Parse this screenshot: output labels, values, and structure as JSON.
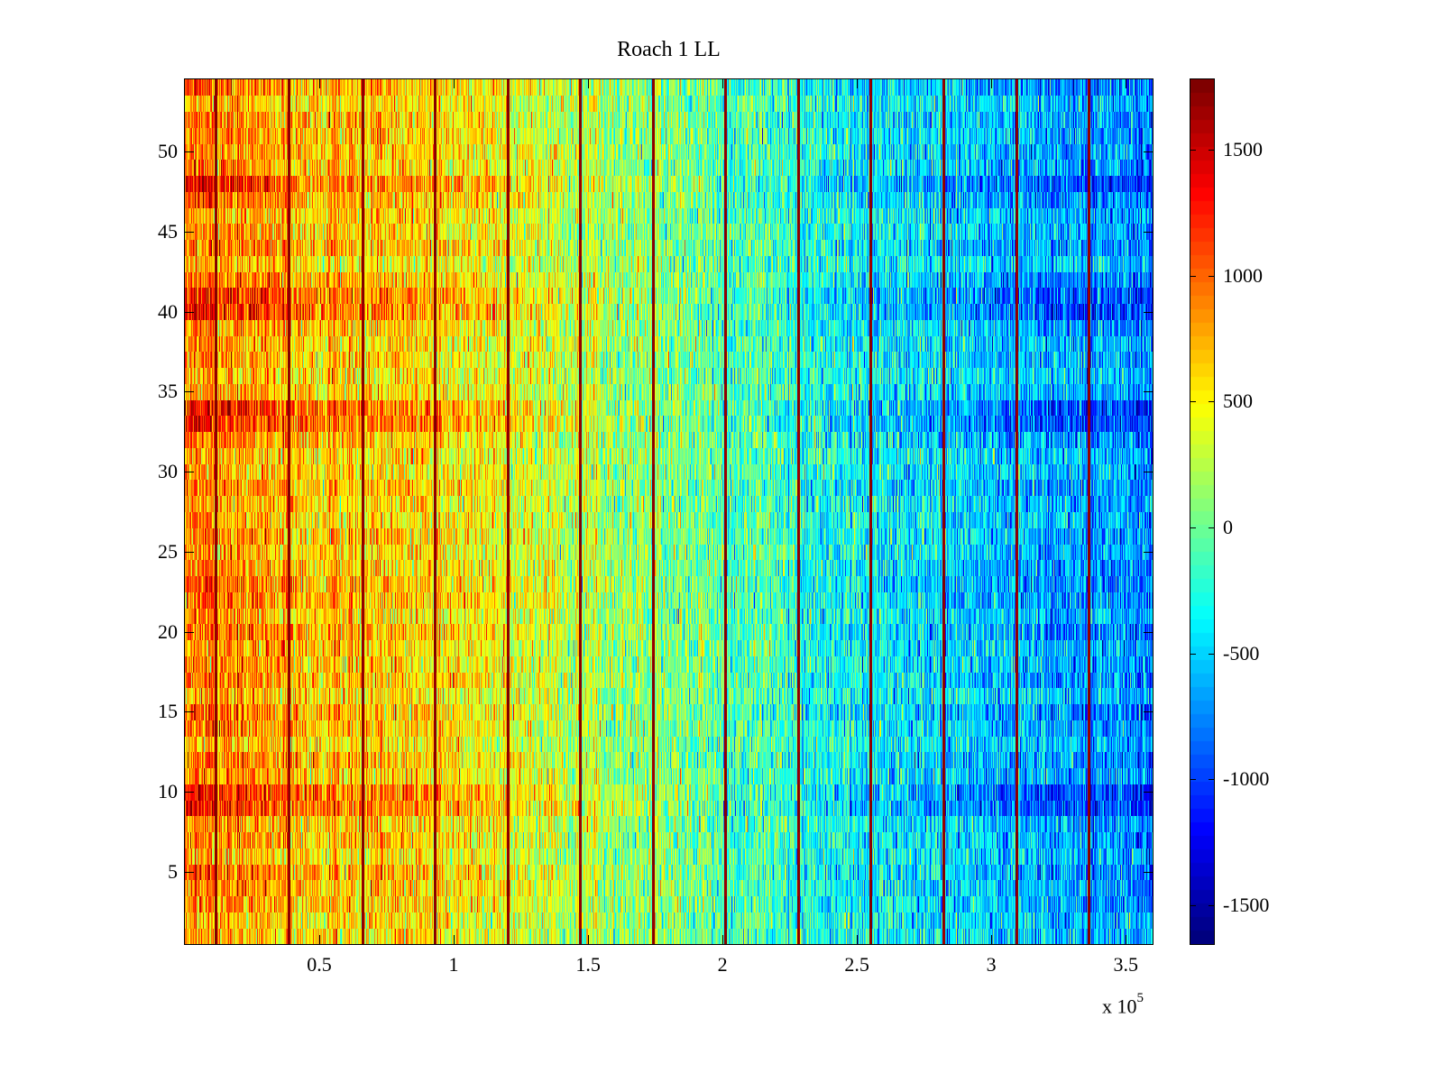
{
  "chart_data": {
    "type": "heatmap",
    "title": "Roach 1 LL",
    "xlabel": "",
    "ylabel": "",
    "x_multiplier_label": "x 10",
    "x_multiplier_exponent": "5",
    "xlim": [
      0,
      3.6
    ],
    "ylim": [
      0.5,
      54.5
    ],
    "rows": 54,
    "xticks": [
      0.5,
      1,
      1.5,
      2,
      2.5,
      3,
      3.5
    ],
    "xtick_labels": [
      "0.5",
      "1",
      "1.5",
      "2",
      "2.5",
      "3",
      "3.5"
    ],
    "yticks": [
      5,
      10,
      15,
      20,
      25,
      30,
      35,
      40,
      45,
      50
    ],
    "ytick_labels": [
      "5",
      "10",
      "15",
      "20",
      "25",
      "30",
      "35",
      "40",
      "45",
      "50"
    ],
    "colormap": "jet",
    "clim": [
      -1654,
      1779
    ],
    "colorbar_ticks": [
      1500,
      1000,
      500,
      0,
      -500,
      -1000,
      -1500
    ],
    "colorbar_tick_labels": [
      "1500",
      "1000",
      "500",
      "0",
      "-500",
      "-1000",
      "-1500"
    ],
    "column_trend": {
      "x": [
        0,
        0.5,
        1,
        1.5,
        2,
        2.5,
        3,
        3.5,
        3.6
      ],
      "value": [
        950,
        650,
        550,
        250,
        -80,
        -330,
        -560,
        -700,
        -720
      ]
    },
    "high_rows": [
      9,
      10,
      33,
      34,
      40,
      41,
      48
    ],
    "peak_columns_x": [
      0.114,
      0.386,
      0.661,
      0.93,
      1.201,
      1.47,
      1.742,
      2.01,
      2.282,
      2.55,
      2.822,
      3.094,
      3.362
    ],
    "peak_value": 1779,
    "noise_std": 280
  }
}
